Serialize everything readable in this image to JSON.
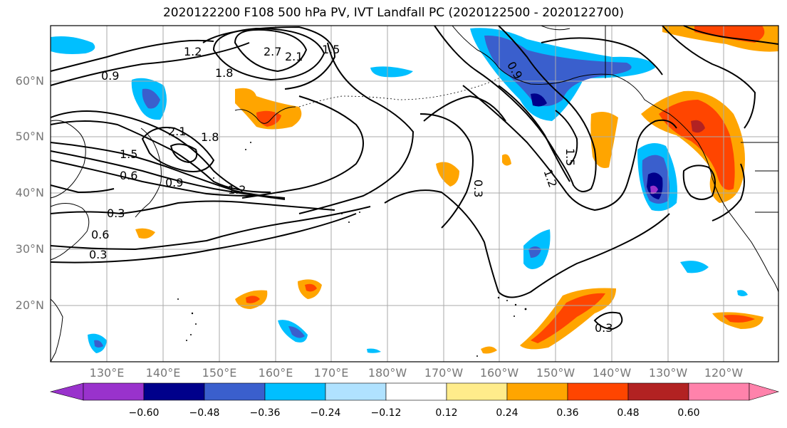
{
  "title": "2020122200 F108 500 hPa PV, IVT Landfall PC (2020122500 - 2020122700)",
  "lat_labels": [
    "60°N",
    "50°N",
    "40°N",
    "30°N",
    "20°N"
  ],
  "lon_labels": [
    "130°E",
    "140°E",
    "150°E",
    "160°E",
    "170°E",
    "180°W",
    "170°W",
    "160°W",
    "150°W",
    "140°W",
    "130°W",
    "120°W"
  ],
  "contour_labels": [
    "2.7",
    "2.1",
    "1.5",
    "1.2",
    "1.8",
    "0.9",
    "2.1",
    "1.8",
    "1.5",
    "0.6",
    "0.9",
    "1.2",
    "0.3",
    "0.6",
    "0.3",
    "0.3",
    "1.2",
    "1.5",
    "0.3",
    "0.9"
  ],
  "colorbar": {
    "ticks": [
      "−0.60",
      "−0.48",
      "−0.36",
      "−0.24",
      "−0.12",
      "0.12",
      "0.24",
      "0.36",
      "0.48",
      "0.60"
    ],
    "colors": [
      "#9932cc",
      "#00008b",
      "#3a5fcd",
      "#00bfff",
      "#b0e2ff",
      "#ffffff",
      "#ffec8b",
      "#ffa500",
      "#ff4500",
      "#b22222",
      "#ff82ab"
    ]
  }
}
